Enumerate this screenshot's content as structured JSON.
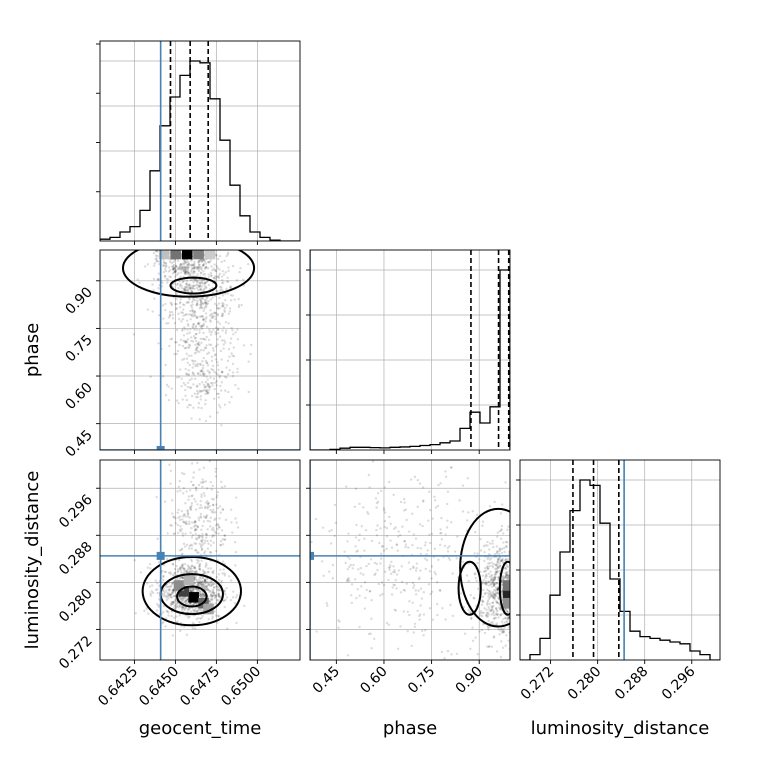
{
  "chart_data": {
    "type": "corner",
    "parameters": [
      "geocent_time",
      "phase",
      "luminosity_distance"
    ],
    "truth": {
      "geocent_time": 0.6441,
      "phase": 0.367,
      "luminosity_distance": 0.2845
    },
    "truth_color": "#4682b4",
    "grid": true,
    "axes": {
      "geocent_time": {
        "label": "geocent_time",
        "range": [
          0.6404,
          0.6526
        ],
        "ticks": [
          0.6425,
          0.645,
          0.6475,
          0.65
        ],
        "tick_labels": [
          "0.6425",
          "0.6450",
          "0.6475",
          "0.6500"
        ]
      },
      "phase": {
        "label": "phase",
        "range": [
          0.367,
          0.997
        ],
        "ticks": [
          0.45,
          0.6,
          0.75,
          0.9
        ],
        "tick_labels": [
          "0.45",
          "0.60",
          "0.75",
          "0.90"
        ]
      },
      "luminosity_distance": {
        "label": "luminosity_distance",
        "range": [
          0.2668,
          0.3008
        ],
        "ticks": [
          0.272,
          0.28,
          0.288,
          0.296
        ],
        "tick_labels": [
          "0.272",
          "0.280",
          "0.288",
          "0.296"
        ]
      }
    },
    "histograms": {
      "geocent_time": {
        "edges": [
          0.6404,
          0.64101,
          0.64162,
          0.64223,
          0.64284,
          0.64345,
          0.64406,
          0.64467,
          0.64528,
          0.64589,
          0.6465,
          0.64711,
          0.64772,
          0.64833,
          0.64894,
          0.64955,
          0.65016,
          0.65077,
          0.65138,
          0.65199,
          0.6526
        ],
        "counts": [
          0.01,
          0.02,
          0.05,
          0.08,
          0.17,
          0.39,
          0.64,
          0.8,
          0.92,
          1.0,
          0.99,
          0.79,
          0.56,
          0.31,
          0.14,
          0.05,
          0.02,
          0.005,
          0.0,
          0.0
        ],
        "quantiles": [
          0.6447,
          0.6459,
          0.647
        ]
      },
      "phase": {
        "edges": [
          0.367,
          0.3985,
          0.43,
          0.4615,
          0.493,
          0.5245,
          0.556,
          0.5875,
          0.619,
          0.6505,
          0.682,
          0.7135,
          0.745,
          0.7765,
          0.808,
          0.8395,
          0.871,
          0.9025,
          0.934,
          0.9655,
          0.997
        ],
        "counts": [
          0.0,
          0.0,
          0.003,
          0.01,
          0.015,
          0.015,
          0.013,
          0.012,
          0.015,
          0.017,
          0.02,
          0.025,
          0.03,
          0.04,
          0.05,
          0.12,
          0.21,
          0.15,
          0.24,
          1.0
        ],
        "quantiles": [
          0.874,
          0.961,
          0.993
        ]
      },
      "luminosity_distance": {
        "edges": [
          0.2668,
          0.2685,
          0.2702,
          0.2719,
          0.2736,
          0.2753,
          0.277,
          0.2787,
          0.2804,
          0.2821,
          0.2838,
          0.2855,
          0.2872,
          0.2889,
          0.2906,
          0.2923,
          0.294,
          0.2957,
          0.2974,
          0.2991,
          0.3008
        ],
        "counts": [
          0.0,
          0.03,
          0.12,
          0.36,
          0.6,
          0.83,
          1.0,
          0.97,
          0.76,
          0.45,
          0.27,
          0.16,
          0.13,
          0.12,
          0.11,
          0.1,
          0.09,
          0.05,
          0.03,
          0.0
        ],
        "quantiles": [
          0.2758,
          0.2793,
          0.2836
        ]
      }
    },
    "joint": [
      {
        "x": "geocent_time",
        "y": "phase",
        "cores": [
          {
            "x": 0.6457,
            "y": 0.997,
            "sx": 0.0009,
            "sy": 0.05,
            "n": 600
          },
          {
            "x": 0.6463,
            "y": 0.88,
            "sx": 0.0012,
            "sy": 0.06,
            "n": 400
          },
          {
            "x": 0.6466,
            "y": 0.72,
            "sx": 0.0011,
            "sy": 0.07,
            "n": 250
          },
          {
            "x": 0.6468,
            "y": 0.57,
            "sx": 0.0009,
            "sy": 0.05,
            "n": 150
          }
        ],
        "density_cells": [
          {
            "x": 0.6457,
            "y": 0.985,
            "level": 1.0
          },
          {
            "x": 0.645,
            "y": 0.985,
            "level": 0.55
          },
          {
            "x": 0.6464,
            "y": 0.985,
            "level": 0.5
          },
          {
            "x": 0.6443,
            "y": 0.985,
            "level": 0.25
          },
          {
            "x": 0.6471,
            "y": 0.985,
            "level": 0.2
          }
        ],
        "contours": [
          {
            "cx": 0.6458,
            "cy": 0.94,
            "rx": 0.004,
            "ry": 0.09
          },
          {
            "cx": 0.6461,
            "cy": 0.885,
            "rx": 0.0014,
            "ry": 0.025
          }
        ]
      },
      {
        "x": "geocent_time",
        "y": "luminosity_distance",
        "cores": [
          {
            "x": 0.6459,
            "y": 0.2785,
            "sx": 0.001,
            "sy": 0.0025,
            "n": 900
          },
          {
            "x": 0.6465,
            "y": 0.2905,
            "sx": 0.0009,
            "sy": 0.0045,
            "n": 300
          }
        ],
        "density_cells": [
          {
            "x": 0.6461,
            "y": 0.2775,
            "level": 1.0
          },
          {
            "x": 0.6455,
            "y": 0.2785,
            "level": 0.75
          },
          {
            "x": 0.6467,
            "y": 0.2765,
            "level": 0.6
          },
          {
            "x": 0.6452,
            "y": 0.2795,
            "level": 0.45
          },
          {
            "x": 0.647,
            "y": 0.2755,
            "level": 0.35
          },
          {
            "x": 0.6458,
            "y": 0.2805,
            "level": 0.3
          }
        ],
        "contours": [
          {
            "cx": 0.646,
            "cy": 0.2785,
            "rx": 0.003,
            "ry": 0.0058
          },
          {
            "cx": 0.646,
            "cy": 0.278,
            "rx": 0.0019,
            "ry": 0.0034
          },
          {
            "cx": 0.646,
            "cy": 0.2776,
            "rx": 0.0009,
            "ry": 0.0017
          }
        ]
      },
      {
        "x": "phase",
        "y": "luminosity_distance",
        "cores": [
          {
            "x": 0.985,
            "y": 0.2785,
            "sx": 0.04,
            "sy": 0.004,
            "n": 900
          },
          {
            "x": 0.7,
            "y": 0.284,
            "sx": 0.16,
            "sy": 0.007,
            "n": 400
          }
        ],
        "density_cells": [
          {
            "x": 0.99,
            "y": 0.278,
            "level": 0.85
          },
          {
            "x": 0.99,
            "y": 0.2795,
            "level": 0.55
          },
          {
            "x": 0.99,
            "y": 0.2765,
            "level": 0.45
          }
        ],
        "contours": [
          {
            "cx": 0.96,
            "cy": 0.2825,
            "rx": 0.12,
            "ry": 0.01
          },
          {
            "cx": 0.87,
            "cy": 0.279,
            "rx": 0.035,
            "ry": 0.0045
          },
          {
            "cx": 0.99,
            "cy": 0.279,
            "rx": 0.025,
            "ry": 0.0045
          }
        ]
      }
    ]
  }
}
